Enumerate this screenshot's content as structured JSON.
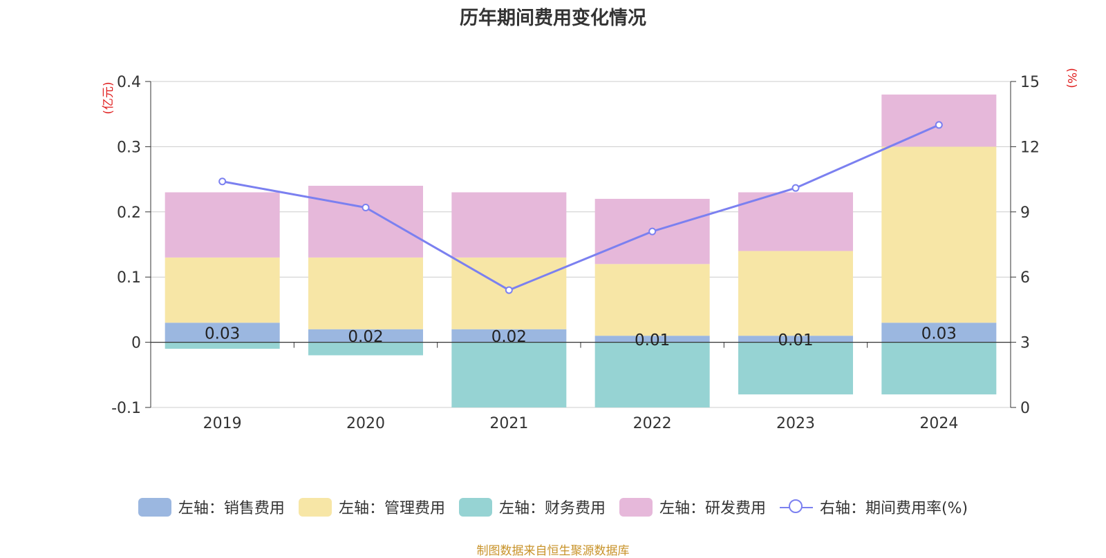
{
  "chart_data": {
    "type": "bar",
    "title": "历年期间费用变化情况",
    "categories": [
      "2019",
      "2020",
      "2021",
      "2022",
      "2023",
      "2024"
    ],
    "left_axis": {
      "unit": "(亿元)",
      "ylim": [
        -0.1,
        0.4
      ],
      "ticks": [
        "-0.1",
        "0",
        "0.1",
        "0.2",
        "0.3",
        "0.4"
      ]
    },
    "right_axis": {
      "unit": "(%)",
      "ylim": [
        0,
        15
      ],
      "ticks": [
        "0",
        "3",
        "6",
        "9",
        "12",
        "15"
      ]
    },
    "series": [
      {
        "name": "左轴：销售费用",
        "axis": "left",
        "kind": "bar",
        "color": "#9bb7e0",
        "values": [
          0.03,
          0.02,
          0.02,
          0.01,
          0.01,
          0.03
        ],
        "labels": [
          "0.03",
          "0.02",
          "0.02",
          "0.01",
          "0.01",
          "0.03"
        ]
      },
      {
        "name": "左轴：管理费用",
        "axis": "left",
        "kind": "bar",
        "color": "#f7e6a6",
        "values": [
          0.1,
          0.11,
          0.11,
          0.11,
          0.13,
          0.27
        ]
      },
      {
        "name": "左轴：财务费用",
        "axis": "left",
        "kind": "bar",
        "color": "#96d3d3",
        "values": [
          -0.01,
          -0.02,
          -0.1,
          -0.1,
          -0.08,
          -0.08
        ]
      },
      {
        "name": "左轴：研发费用",
        "axis": "left",
        "kind": "bar",
        "color": "#e6b8da",
        "values": [
          0.1,
          0.11,
          0.1,
          0.1,
          0.09,
          0.08
        ]
      },
      {
        "name": "右轴：期间费用率(%)",
        "axis": "right",
        "kind": "line",
        "color": "#7b80f0",
        "values": [
          10.4,
          9.2,
          5.4,
          8.1,
          10.1,
          13.0
        ]
      }
    ]
  },
  "source": "制图数据来自恒生聚源数据库"
}
